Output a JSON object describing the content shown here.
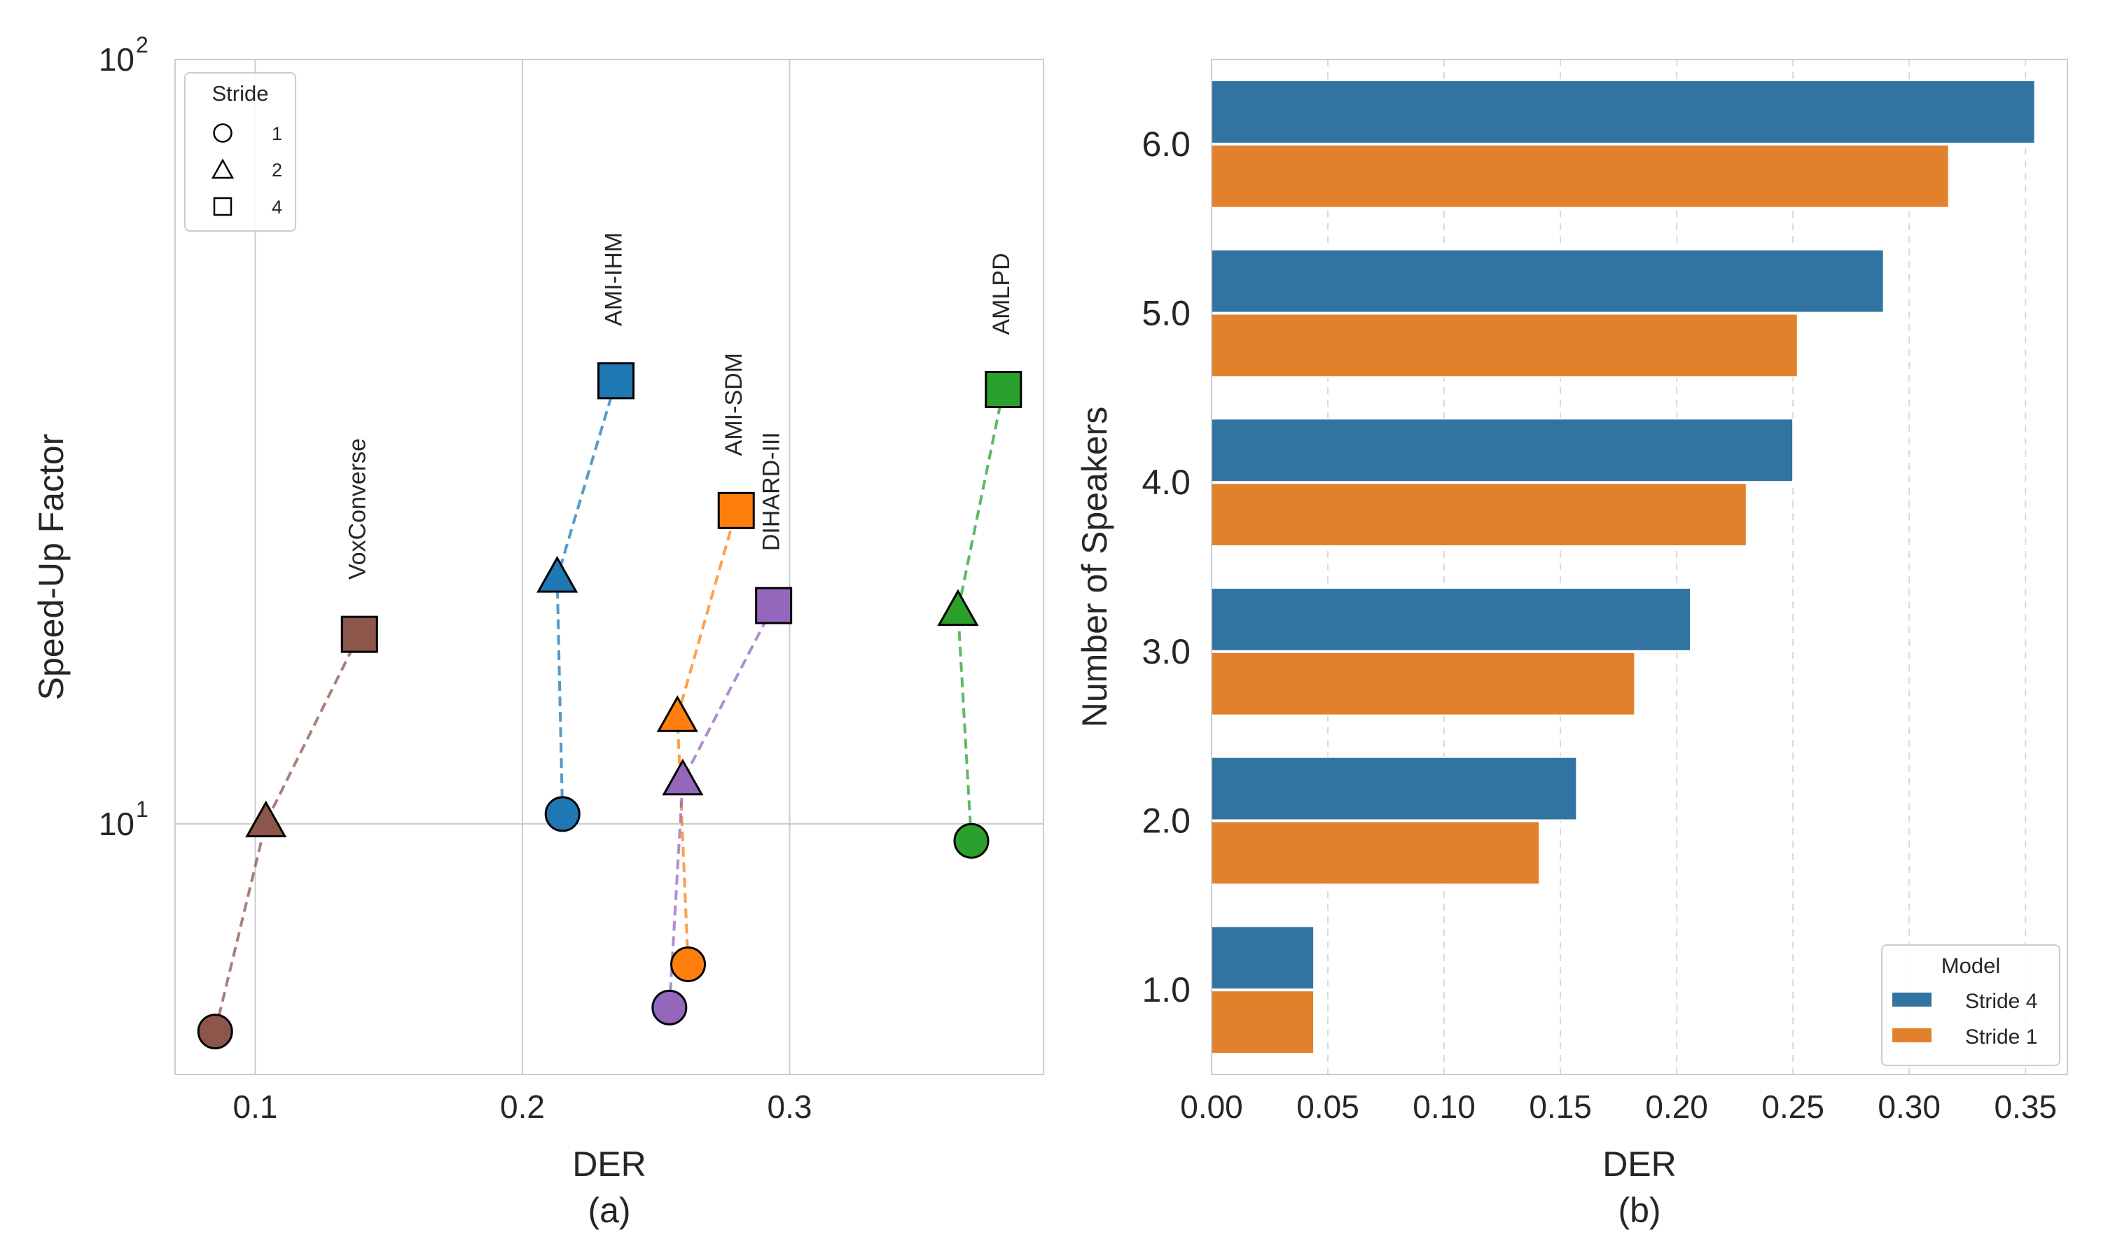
{
  "chart_data": [
    {
      "id": "a",
      "type": "scatter",
      "panel_label": "(a)",
      "xlabel": "DER",
      "ylabel": "Speed-Up Factor",
      "xlim": [
        0.07,
        0.395
      ],
      "ylim": [
        4.7,
        100
      ],
      "yscale": "log",
      "xticks": [
        0.1,
        0.2,
        0.3
      ],
      "xtick_labels": [
        "0.1",
        "0.2",
        "0.3"
      ],
      "yticks": [
        10,
        100
      ],
      "ytick_base": "10",
      "ytick_exponents": [
        "1",
        "2"
      ],
      "legend": {
        "title": "Stride",
        "position": "top-left",
        "entries": [
          {
            "marker": "circle",
            "label": "1"
          },
          {
            "marker": "triangle",
            "label": "2"
          },
          {
            "marker": "square",
            "label": "4"
          }
        ]
      },
      "series": [
        {
          "name": "VoxConverse",
          "color": "#8c564b",
          "points": [
            {
              "stride": 1,
              "der": 0.085,
              "speedup": 5.35
            },
            {
              "stride": 2,
              "der": 0.104,
              "speedup": 10.05
            },
            {
              "stride": 4,
              "der": 0.139,
              "speedup": 17.7
            }
          ]
        },
        {
          "name": "AMI-IHM",
          "color": "#1f77b4",
          "points": [
            {
              "stride": 1,
              "der": 0.215,
              "speedup": 10.3
            },
            {
              "stride": 2,
              "der": 0.213,
              "speedup": 21.0
            },
            {
              "stride": 4,
              "der": 0.235,
              "speedup": 38.0
            }
          ]
        },
        {
          "name": "AMI-SDM",
          "color": "#ff7f0e",
          "points": [
            {
              "stride": 1,
              "der": 0.262,
              "speedup": 6.55
            },
            {
              "stride": 2,
              "der": 0.258,
              "speedup": 13.8
            },
            {
              "stride": 4,
              "der": 0.28,
              "speedup": 25.7
            }
          ]
        },
        {
          "name": "DIHARD-III",
          "color": "#9467bd",
          "points": [
            {
              "stride": 1,
              "der": 0.255,
              "speedup": 5.75
            },
            {
              "stride": 2,
              "der": 0.26,
              "speedup": 11.4
            },
            {
              "stride": 4,
              "der": 0.294,
              "speedup": 19.3
            }
          ]
        },
        {
          "name": "AMLPD",
          "color": "#2ca02c",
          "points": [
            {
              "stride": 1,
              "der": 0.368,
              "speedup": 9.5
            },
            {
              "stride": 2,
              "der": 0.363,
              "speedup": 19.0
            },
            {
              "stride": 4,
              "der": 0.38,
              "speedup": 37.0
            }
          ]
        }
      ]
    },
    {
      "id": "b",
      "type": "bar",
      "orientation": "horizontal",
      "panel_label": "(b)",
      "xlabel": "DER",
      "ylabel": "Number of Speakers",
      "xlim": [
        0,
        0.368
      ],
      "xticks": [
        0.0,
        0.05,
        0.1,
        0.15,
        0.2,
        0.25,
        0.3,
        0.35
      ],
      "xtick_labels": [
        "0.00",
        "0.05",
        "0.10",
        "0.15",
        "0.20",
        "0.25",
        "0.30",
        "0.35"
      ],
      "categories": [
        "6.0",
        "5.0",
        "4.0",
        "3.0",
        "2.0",
        "1.0"
      ],
      "series": [
        {
          "name": "Stride 4",
          "color": "#3274a1",
          "values": [
            0.354,
            0.289,
            0.25,
            0.206,
            0.157,
            0.044
          ]
        },
        {
          "name": "Stride 1",
          "color": "#e1812c",
          "values": [
            0.317,
            0.252,
            0.23,
            0.182,
            0.141,
            0.044
          ]
        }
      ],
      "legend": {
        "title": "Model",
        "position": "bottom-right",
        "entries": [
          "Stride 4",
          "Stride 1"
        ]
      }
    }
  ]
}
